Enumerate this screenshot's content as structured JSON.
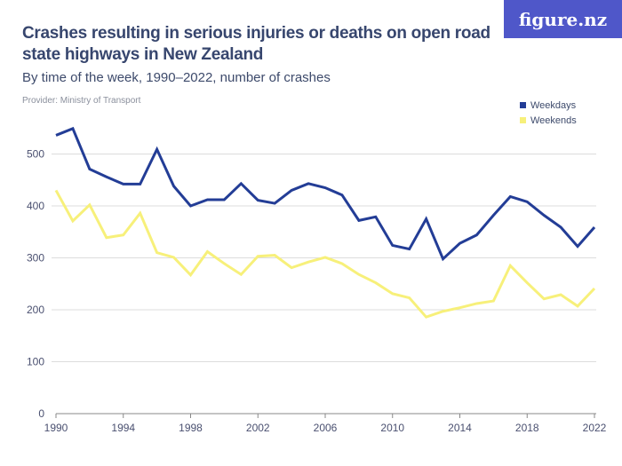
{
  "logo": "figure.nz",
  "chart_data": {
    "type": "line",
    "title": "Crashes resulting in serious injuries or deaths on open road state highways in New Zealand",
    "subtitle": "By time of the week, 1990–2022, number of crashes",
    "provider": "Provider: Ministry of Transport",
    "x": [
      1990,
      1991,
      1992,
      1993,
      1994,
      1995,
      1996,
      1997,
      1998,
      1999,
      2000,
      2001,
      2002,
      2003,
      2004,
      2005,
      2006,
      2007,
      2008,
      2009,
      2010,
      2011,
      2012,
      2013,
      2014,
      2015,
      2016,
      2017,
      2018,
      2019,
      2020,
      2021,
      2022
    ],
    "series": [
      {
        "name": "Weekdays",
        "color": "#233d96",
        "values": [
          536,
          549,
          471,
          456,
          442,
          442,
          509,
          438,
          400,
          412,
          412,
          443,
          411,
          405,
          430,
          443,
          435,
          421,
          372,
          379,
          324,
          317,
          375,
          298,
          328,
          344,
          382,
          418,
          408,
          382,
          359,
          322,
          359
        ]
      },
      {
        "name": "Weekends",
        "color": "#f7f07a",
        "values": [
          430,
          371,
          402,
          339,
          344,
          386,
          310,
          301,
          267,
          312,
          289,
          268,
          303,
          305,
          281,
          292,
          301,
          289,
          268,
          252,
          231,
          223,
          186,
          197,
          204,
          212,
          217,
          285,
          252,
          221,
          229,
          207,
          241
        ]
      }
    ],
    "xlim": [
      1990,
      2022
    ],
    "ylim": [
      0,
      540
    ],
    "x_ticks": [
      "1990",
      "1994",
      "1998",
      "2002",
      "2006",
      "2010",
      "2014",
      "2018",
      "2022"
    ],
    "y_ticks": [
      "0",
      "100",
      "200",
      "300",
      "400",
      "500"
    ],
    "grid": true,
    "legend": "top-right"
  }
}
